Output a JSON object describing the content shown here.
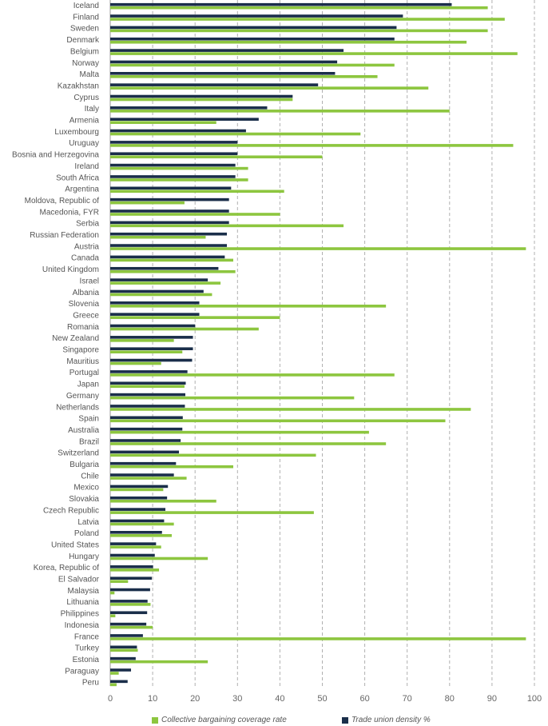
{
  "chart_data": {
    "type": "bar",
    "orientation": "horizontal",
    "categories": [
      "Iceland",
      "Finland",
      "Sweden",
      "Denmark",
      "Belgium",
      "Norway",
      "Malta",
      "Kazakhstan",
      "Cyprus",
      "Italy",
      "Armenia",
      "Luxembourg",
      "Uruguay",
      "Bosnia and Herzegovina",
      "Ireland",
      "South Africa",
      "Argentina",
      "Moldova, Republic of",
      "Macedonia, FYR",
      "Serbia",
      "Russian Federation",
      "Austria",
      "Canada",
      "United Kingdom",
      "Israel",
      "Albania",
      "Slovenia",
      "Greece",
      "Romania",
      "New Zealand",
      "Singapore",
      "Mauritius",
      "Portugal",
      "Japan",
      "Germany",
      "Netherlands",
      "Spain",
      "Australia",
      "Brazil",
      "Switzerland",
      "Bulgaria",
      "Chile",
      "Mexico",
      "Slovakia",
      "Czech Republic",
      "Latvia",
      "Poland",
      "United States",
      "Hungary",
      "Korea, Republic of",
      "El Salvador",
      "Malaysia",
      "Lithuania",
      "Philippines",
      "Indonesia",
      "France",
      "Turkey",
      "Estonia",
      "Paraguay",
      "Peru"
    ],
    "series": [
      {
        "name": "Trade union density %",
        "color": "#1a2e4a",
        "values": [
          80.5,
          69,
          67.5,
          67,
          55,
          53.5,
          53,
          49,
          43,
          37,
          35,
          32,
          30,
          30,
          29.5,
          29.5,
          28.5,
          28,
          28,
          28,
          27.5,
          27.5,
          27,
          25.5,
          23,
          22,
          21,
          21,
          20,
          19.5,
          19.5,
          19.3,
          18.2,
          17.8,
          17.7,
          17.6,
          17.1,
          17,
          16.6,
          16.2,
          15.5,
          15,
          13.6,
          13.4,
          13,
          12.7,
          12.2,
          10.8,
          10.5,
          10.1,
          9.8,
          9.4,
          8.8,
          8.7,
          8.5,
          7.7,
          6.3,
          6,
          4.9,
          4.1
        ]
      },
      {
        "name": "Collective bargaining coverage rate",
        "color": "#8dc63f",
        "values": [
          89,
          93,
          89,
          84,
          96,
          67,
          63,
          75,
          43,
          80,
          25,
          59,
          95,
          50,
          32.5,
          32.5,
          41,
          17.5,
          40,
          55,
          22.5,
          98,
          29,
          29.5,
          26,
          24,
          65,
          40,
          35,
          15,
          17,
          12,
          67,
          17.5,
          57.5,
          85,
          79,
          61,
          65,
          48.5,
          29,
          18,
          12.5,
          25,
          48,
          15,
          14.5,
          12,
          23,
          11.5,
          4.2,
          1,
          9.5,
          1.2,
          10,
          98,
          6.5,
          23,
          2,
          1.5
        ]
      }
    ],
    "xlim": [
      0,
      100
    ],
    "xticks": [
      0,
      10,
      20,
      30,
      40,
      50,
      60,
      70,
      80,
      90,
      100
    ],
    "grid": "vertical-dashed",
    "legend_position": "bottom"
  },
  "legend": {
    "coverage_label": "Collective bargaining coverage rate",
    "density_label": "Trade union density %"
  },
  "colors": {
    "density": "#1a2e4a",
    "coverage": "#8dc63f",
    "grid": "#b0b0b0",
    "axis_text": "#666666"
  }
}
